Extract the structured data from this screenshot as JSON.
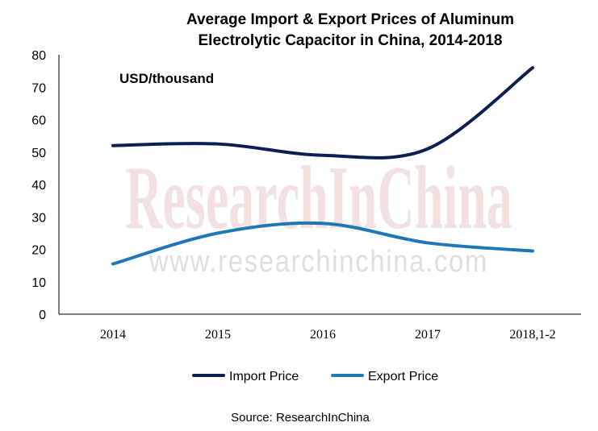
{
  "chart_data": {
    "type": "line",
    "title_line1": "Average Import & Export Prices of Aluminum",
    "title_line2": "Electrolytic Capacitor in China, 2014-2018",
    "unit_label": "USD/thousand",
    "categories": [
      "2014",
      "2015",
      "2016",
      "2017",
      "2018,1-2"
    ],
    "ylim": [
      0,
      80
    ],
    "yticks": [
      "0",
      "10",
      "20",
      "30",
      "40",
      "50",
      "60",
      "70",
      "80"
    ],
    "grid": false,
    "legend_position": "bottom",
    "series": [
      {
        "name": "Import Price",
        "values": [
          52,
          52.5,
          49,
          51,
          76
        ],
        "color": "#0b1f55"
      },
      {
        "name": "Export Price",
        "values": [
          15.5,
          25,
          28,
          22,
          19.5
        ],
        "color": "#1f77b8"
      }
    ],
    "source": "Source: ResearchInChina",
    "watermark": "ResearchInChina",
    "watermark_url": "www.researchinchina.com"
  }
}
